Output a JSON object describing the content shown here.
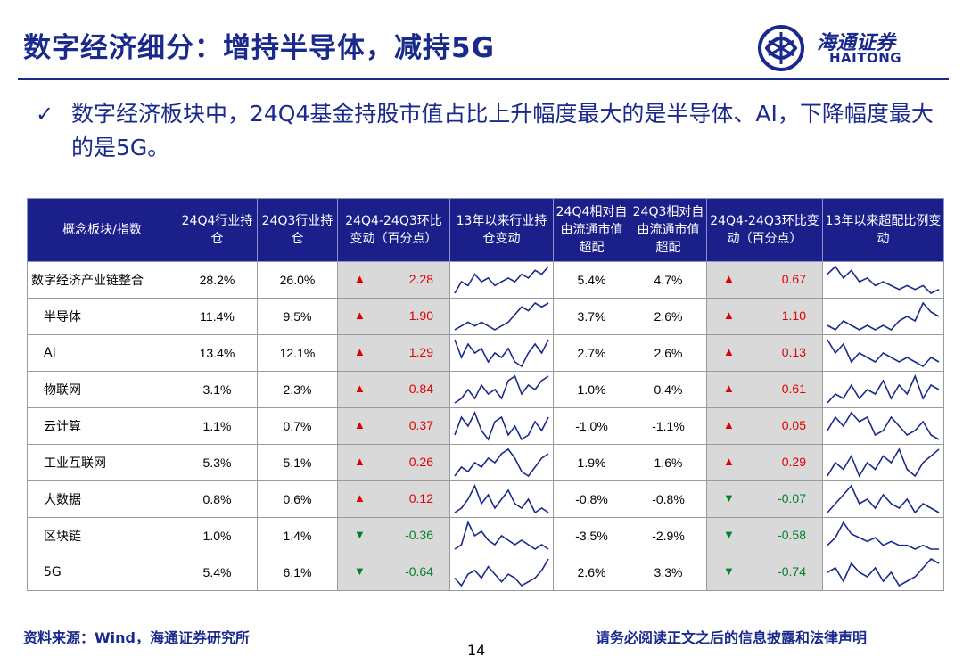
{
  "title": "数字经济细分：增持半导体，减持5G",
  "logo": {
    "cn": "海通证券",
    "en": "HAITONG",
    "icon": "haitong-logo-icon"
  },
  "bullet": "数字经济板块中，24Q4基金持股市值占比上升幅度最大的是半导体、AI，下降幅度最大的是5G。",
  "table": {
    "headers": [
      "概念板块/指数",
      "24Q4行业持仓",
      "24Q3行业持仓",
      "24Q4-24Q3环比变动（百分点）",
      "13年以来行业持仓变动",
      "24Q4相对自由流通市值超配",
      "24Q3相对自由流通市值超配",
      "24Q4-24Q3环比变动（百分点）",
      "13年以来超配比例变动"
    ],
    "rows": [
      {
        "name": "数字经济产业链整合",
        "q4": "28.2%",
        "q3": "26.0%",
        "dir1": "up",
        "chg1": "2.28",
        "r4": "5.4%",
        "r3": "4.7%",
        "dir2": "up",
        "chg2": "0.67",
        "spark1": [
          2,
          5,
          4,
          7,
          5,
          6,
          4,
          5,
          6,
          5,
          7,
          6,
          8,
          7,
          9
        ],
        "spark2": [
          6,
          8,
          5,
          7,
          4,
          5,
          3,
          4,
          3,
          2,
          3,
          2,
          3,
          1,
          2
        ]
      },
      {
        "name": "半导体",
        "q4": "11.4%",
        "q3": "9.5%",
        "dir1": "up",
        "chg1": "1.90",
        "r4": "3.7%",
        "r3": "2.6%",
        "dir2": "up",
        "chg2": "1.10",
        "spark1": [
          2,
          3,
          4,
          3,
          4,
          3,
          2,
          3,
          4,
          6,
          8,
          7,
          9,
          8,
          9
        ],
        "spark2": [
          3,
          2,
          4,
          3,
          2,
          3,
          2,
          3,
          2,
          4,
          5,
          4,
          8,
          6,
          5
        ]
      },
      {
        "name": "AI",
        "q4": "13.4%",
        "q3": "12.1%",
        "dir1": "up",
        "chg1": "1.29",
        "r4": "2.7%",
        "r3": "2.6%",
        "dir2": "up",
        "chg2": "0.13",
        "spark1": [
          8,
          4,
          7,
          5,
          6,
          3,
          5,
          4,
          6,
          3,
          2,
          5,
          7,
          5,
          8
        ],
        "spark2": [
          8,
          5,
          7,
          3,
          5,
          4,
          3,
          5,
          4,
          3,
          4,
          3,
          2,
          4,
          3
        ]
      },
      {
        "name": "物联网",
        "q4": "3.1%",
        "q3": "2.3%",
        "dir1": "up",
        "chg1": "0.84",
        "r4": "1.0%",
        "r3": "0.4%",
        "dir2": "up",
        "chg2": "0.61",
        "spark1": [
          2,
          3,
          5,
          3,
          6,
          4,
          5,
          3,
          7,
          8,
          4,
          6,
          5,
          7,
          8
        ],
        "spark2": [
          2,
          4,
          3,
          6,
          3,
          5,
          4,
          7,
          3,
          6,
          4,
          8,
          3,
          6,
          5
        ]
      },
      {
        "name": "云计算",
        "q4": "1.1%",
        "q3": "0.7%",
        "dir1": "up",
        "chg1": "0.37",
        "r4": "-1.0%",
        "r3": "-1.1%",
        "dir2": "up",
        "chg2": "0.05",
        "spark1": [
          3,
          7,
          5,
          8,
          4,
          2,
          6,
          7,
          3,
          5,
          2,
          3,
          6,
          4,
          7
        ],
        "spark2": [
          3,
          6,
          4,
          7,
          5,
          6,
          2,
          3,
          6,
          4,
          2,
          3,
          5,
          2,
          1
        ]
      },
      {
        "name": "工业互联网",
        "q4": "5.3%",
        "q3": "5.1%",
        "dir1": "up",
        "chg1": "0.26",
        "r4": "1.9%",
        "r3": "1.6%",
        "dir2": "up",
        "chg2": "0.29",
        "spark1": [
          2,
          4,
          3,
          5,
          4,
          6,
          5,
          7,
          8,
          6,
          3,
          2,
          4,
          6,
          7
        ],
        "spark2": [
          3,
          5,
          4,
          6,
          3,
          5,
          4,
          6,
          5,
          7,
          4,
          3,
          5,
          6,
          7
        ]
      },
      {
        "name": "大数据",
        "q4": "0.8%",
        "q3": "0.6%",
        "dir1": "up",
        "chg1": "0.12",
        "r4": "-0.8%",
        "r3": "-0.8%",
        "dir2": "down",
        "chg2": "-0.07",
        "spark1": [
          2,
          3,
          5,
          8,
          4,
          6,
          3,
          5,
          7,
          4,
          3,
          5,
          2,
          3,
          2
        ],
        "spark2": [
          2,
          4,
          6,
          8,
          4,
          5,
          3,
          6,
          4,
          3,
          5,
          2,
          4,
          3,
          2
        ]
      },
      {
        "name": "区块链",
        "q4": "1.0%",
        "q3": "1.4%",
        "dir1": "down",
        "chg1": "-0.36",
        "r4": "-3.5%",
        "r3": "-2.9%",
        "dir2": "down",
        "chg2": "-0.58",
        "spark1": [
          3,
          4,
          9,
          6,
          7,
          5,
          4,
          6,
          5,
          4,
          5,
          4,
          3,
          4,
          3
        ],
        "spark2": [
          3,
          5,
          9,
          6,
          5,
          4,
          5,
          3,
          4,
          3,
          3,
          2,
          3,
          2,
          2
        ]
      },
      {
        "name": "5G",
        "q4": "5.4%",
        "q3": "6.1%",
        "dir1": "down",
        "chg1": "-0.64",
        "r4": "2.6%",
        "r3": "3.3%",
        "dir2": "down",
        "chg2": "-0.74",
        "spark1": [
          4,
          2,
          5,
          6,
          4,
          7,
          5,
          3,
          5,
          4,
          2,
          3,
          4,
          6,
          9
        ],
        "spark2": [
          5,
          6,
          3,
          7,
          5,
          4,
          6,
          3,
          5,
          2,
          3,
          4,
          6,
          8,
          7
        ]
      }
    ]
  },
  "footer": {
    "source": "资料来源：Wind，海通证券研究所",
    "page": "14",
    "disclaimer": "请务必阅读正文之后的信息披露和法律声明"
  },
  "colors": {
    "brand": "#1a2a8c",
    "header_bg": "#1a1f8a",
    "up": "#e00000",
    "down": "#00802b",
    "spark": "#1a2a8c"
  }
}
